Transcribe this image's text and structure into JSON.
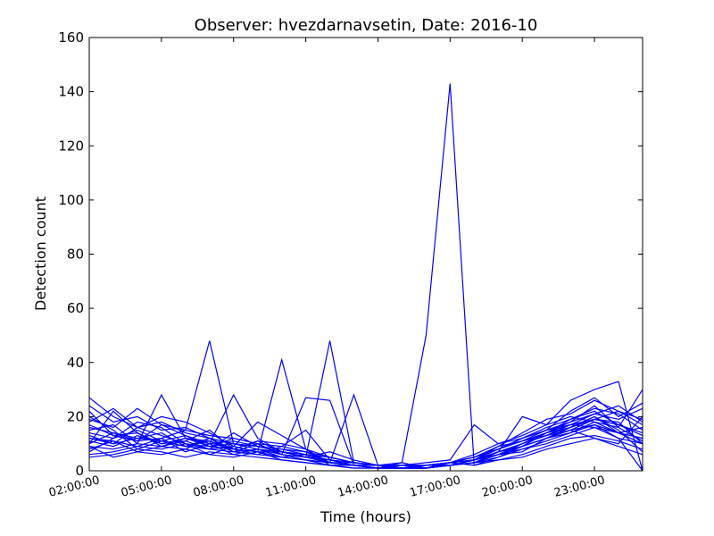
{
  "chart_data": {
    "type": "line",
    "title": "Observer: hvezdarnavsetin, Date: 2016-10",
    "xlabel": "Time (hours)",
    "ylabel": "Detection count",
    "ylim": [
      0,
      160
    ],
    "xlim": [
      "02:00:00",
      "01:00:00 (next day)"
    ],
    "x": [
      "02:00:00",
      "03:00:00",
      "04:00:00",
      "05:00:00",
      "06:00:00",
      "07:00:00",
      "08:00:00",
      "09:00:00",
      "10:00:00",
      "11:00:00",
      "12:00:00",
      "13:00:00",
      "14:00:00",
      "15:00:00",
      "16:00:00",
      "17:00:00",
      "18:00:00",
      "19:00:00",
      "20:00:00",
      "21:00:00",
      "22:00:00",
      "23:00:00",
      "00:00:00",
      "01:00:00"
    ],
    "xtick_labels": [
      "02:00:00",
      "05:00:00",
      "08:00:00",
      "11:00:00",
      "14:00:00",
      "17:00:00",
      "20:00:00",
      "23:00:00"
    ],
    "ytick_labels": [
      "0",
      "20",
      "40",
      "60",
      "80",
      "100",
      "120",
      "140",
      "160"
    ],
    "ytick_values": [
      0,
      20,
      40,
      60,
      80,
      100,
      120,
      140,
      160
    ],
    "color": "#0000ff",
    "grid": false,
    "series": [
      {
        "values": [
          27,
          20,
          16,
          18,
          14,
          12,
          10,
          9,
          7,
          5,
          3,
          3,
          2,
          2,
          2,
          3,
          4,
          7,
          10,
          14,
          17,
          19,
          18,
          10
        ]
      },
      {
        "values": [
          12,
          10,
          16,
          20,
          18,
          14,
          9,
          18,
          13,
          8,
          5,
          3,
          2,
          1,
          2,
          3,
          5,
          8,
          11,
          15,
          17,
          21,
          24,
          18
        ]
      },
      {
        "values": [
          22,
          13,
          11,
          12,
          15,
          48,
          10,
          8,
          6,
          4,
          2,
          1,
          1,
          1,
          2,
          2,
          4,
          6,
          9,
          12,
          15,
          17,
          14,
          12
        ]
      },
      {
        "values": [
          9,
          8,
          10,
          28,
          12,
          10,
          28,
          12,
          7,
          5,
          3,
          2,
          1,
          1,
          2,
          3,
          4,
          9,
          11,
          13,
          15,
          12,
          10,
          20
        ]
      },
      {
        "values": [
          10,
          22,
          14,
          9,
          12,
          11,
          8,
          7,
          41,
          8,
          3,
          2,
          1,
          1,
          1,
          2,
          3,
          7,
          9,
          14,
          19,
          23,
          21,
          15
        ]
      },
      {
        "values": [
          14,
          12,
          18,
          16,
          10,
          9,
          12,
          10,
          6,
          27,
          26,
          2,
          1,
          1,
          1,
          2,
          4,
          6,
          10,
          13,
          16,
          20,
          15,
          7
        ]
      },
      {
        "values": [
          15,
          17,
          10,
          9,
          11,
          8,
          9,
          7,
          7,
          5,
          48,
          3,
          2,
          1,
          1,
          2,
          3,
          5,
          8,
          10,
          13,
          16,
          14,
          12
        ]
      },
      {
        "values": [
          8,
          11,
          9,
          12,
          7,
          10,
          6,
          8,
          5,
          6,
          3,
          28,
          2,
          1,
          1,
          2,
          3,
          6,
          7,
          12,
          14,
          18,
          16,
          30
        ]
      },
      {
        "values": [
          16,
          14,
          12,
          11,
          9,
          8,
          7,
          6,
          5,
          4,
          3,
          2,
          1,
          3,
          50,
          143,
          2,
          5,
          9,
          12,
          15,
          19,
          17,
          13
        ]
      },
      {
        "values": [
          11,
          9,
          13,
          10,
          12,
          9,
          10,
          8,
          7,
          6,
          5,
          3,
          2,
          2,
          3,
          4,
          17,
          10,
          12,
          15,
          22,
          27,
          20,
          25
        ]
      },
      {
        "values": [
          20,
          15,
          8,
          11,
          9,
          12,
          8,
          11,
          10,
          8,
          2,
          2,
          1,
          2,
          1,
          3,
          4,
          7,
          20,
          17,
          26,
          30,
          33,
          0
        ]
      },
      {
        "values": [
          6,
          7,
          9,
          8,
          10,
          6,
          9,
          7,
          5,
          4,
          3,
          2,
          2,
          1,
          2,
          3,
          2,
          4,
          6,
          9,
          12,
          13,
          11,
          8
        ]
      },
      {
        "values": [
          18,
          23,
          16,
          13,
          10,
          8,
          14,
          9,
          8,
          7,
          5,
          3,
          2,
          1,
          2,
          3,
          5,
          8,
          12,
          16,
          19,
          22,
          17,
          14
        ]
      },
      {
        "values": [
          13,
          10,
          12,
          14,
          9,
          11,
          7,
          10,
          6,
          5,
          4,
          2,
          1,
          1,
          2,
          2,
          4,
          7,
          9,
          14,
          18,
          24,
          16,
          11
        ]
      },
      {
        "values": [
          7,
          12,
          15,
          11,
          13,
          9,
          8,
          6,
          9,
          7,
          3,
          2,
          2,
          3,
          1,
          2,
          3,
          6,
          8,
          11,
          14,
          17,
          12,
          10
        ]
      },
      {
        "values": [
          24,
          18,
          20,
          15,
          16,
          12,
          10,
          9,
          7,
          6,
          4,
          3,
          2,
          1,
          2,
          3,
          5,
          9,
          14,
          19,
          21,
          26,
          22,
          19
        ]
      },
      {
        "values": [
          10,
          14,
          11,
          17,
          13,
          10,
          11,
          9,
          8,
          6,
          3,
          2,
          1,
          2,
          2,
          3,
          6,
          10,
          13,
          17,
          20,
          18,
          14,
          16
        ]
      },
      {
        "values": [
          5,
          6,
          8,
          7,
          5,
          7,
          6,
          5,
          4,
          3,
          2,
          1,
          1,
          1,
          1,
          2,
          3,
          4,
          5,
          8,
          10,
          12,
          9,
          6
        ]
      },
      {
        "values": [
          19,
          16,
          23,
          17,
          15,
          13,
          12,
          10,
          9,
          15,
          4,
          3,
          2,
          1,
          2,
          2,
          4,
          8,
          12,
          15,
          18,
          21,
          19,
          23
        ]
      },
      {
        "values": [
          12,
          11,
          7,
          9,
          8,
          12,
          7,
          8,
          6,
          5,
          7,
          4,
          2,
          1,
          1,
          2,
          3,
          6,
          9,
          12,
          16,
          20,
          14,
          10
        ]
      },
      {
        "values": [
          9,
          5,
          7,
          6,
          8,
          6,
          5,
          7,
          4,
          3,
          2,
          2,
          1,
          1,
          2,
          3,
          4,
          7,
          10,
          13,
          17,
          16,
          12,
          0
        ]
      },
      {
        "values": [
          17,
          13,
          14,
          10,
          11,
          15,
          8,
          11,
          7,
          6,
          5,
          3,
          2,
          1,
          1,
          3,
          5,
          8,
          11,
          14,
          16,
          19,
          22,
          17
        ]
      }
    ]
  }
}
